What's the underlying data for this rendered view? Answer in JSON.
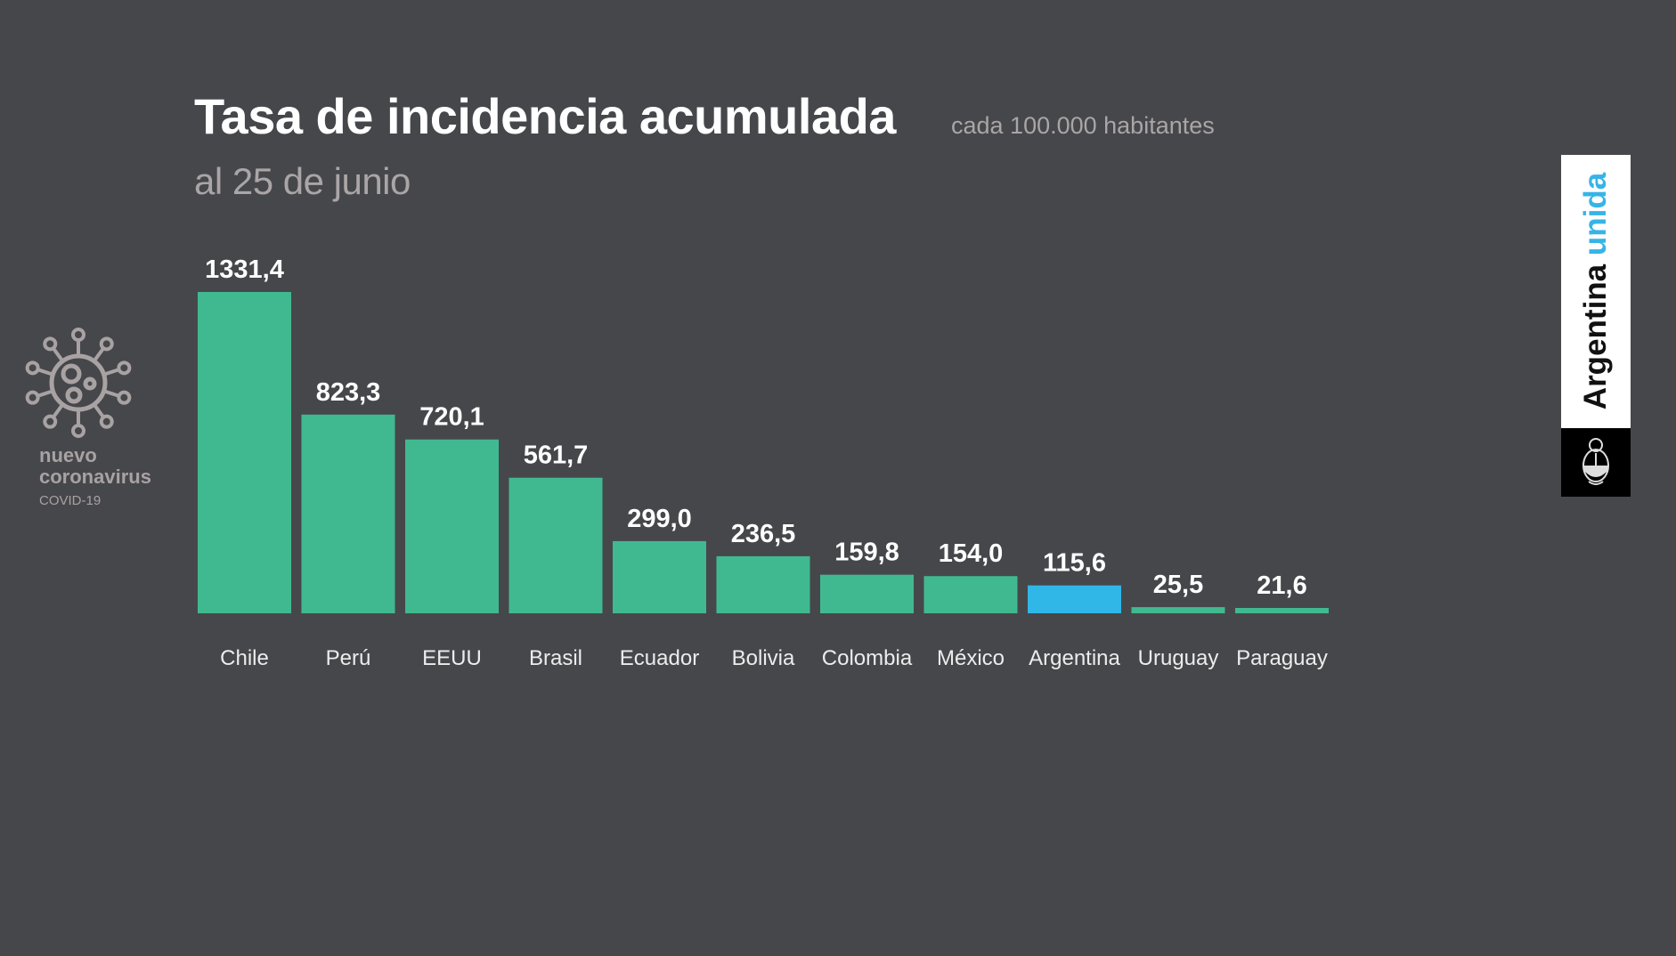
{
  "header": {
    "title": "Tasa de incidencia acumulada",
    "unit": "cada 100.000 habitantes",
    "subtitle": "al 25 de junio"
  },
  "branding": {
    "icon": "coronavirus-icon",
    "line1": "nuevo",
    "line2": "coronavirus",
    "line3": "COVID-19",
    "logo_word1": "Argentina",
    "logo_word2": "unida",
    "logo_seal": "national-coat-of-arms"
  },
  "colors": {
    "background": "#46474b",
    "bar": "#41b990",
    "highlight": "#31b6e8",
    "text": "#ffffff",
    "muted": "#aaa5a6"
  },
  "chart_data": {
    "type": "bar",
    "title": "Tasa de incidencia acumulada",
    "subtitle": "al 25 de junio",
    "ylabel": "cada 100.000 habitantes",
    "xlabel": "",
    "categories": [
      "Chile",
      "Perú",
      "EEUU",
      "Brasil",
      "Ecuador",
      "Bolivia",
      "Colombia",
      "México",
      "Argentina",
      "Uruguay",
      "Paraguay"
    ],
    "values": [
      1331.4,
      823.3,
      720.1,
      561.7,
      299.0,
      236.5,
      159.8,
      154.0,
      115.6,
      25.5,
      21.6
    ],
    "value_labels": [
      "1331,4",
      "823,3",
      "720,1",
      "561,7",
      "299,0",
      "236,5",
      "159,8",
      "154,0",
      "115,6",
      "25,5",
      "21,6"
    ],
    "highlight": "Argentina",
    "ylim": [
      0,
      1331.4
    ],
    "grid": false,
    "legend": "none"
  }
}
